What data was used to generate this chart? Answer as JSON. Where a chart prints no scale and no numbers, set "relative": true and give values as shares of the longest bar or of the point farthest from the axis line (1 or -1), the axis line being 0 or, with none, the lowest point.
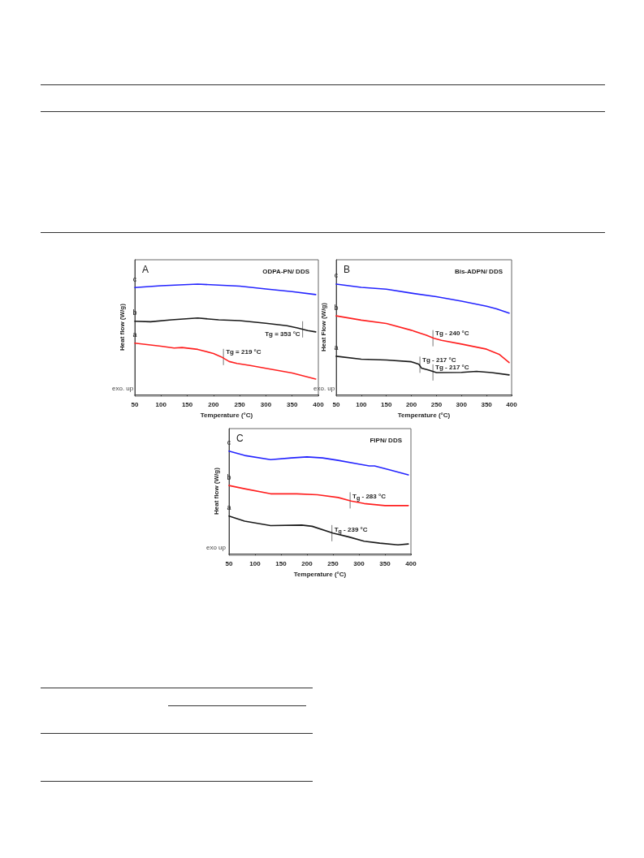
{
  "chart_data": [
    {
      "type": "line",
      "title": "A",
      "subtitle": "ODPA-PN/ DDS",
      "xlabel": "Temperature (°C)",
      "ylabel": "Heat flow (W/g)",
      "relative": true,
      "xlim": [
        50,
        400
      ],
      "xticks": [
        50,
        100,
        150,
        200,
        250,
        300,
        350,
        400
      ],
      "grid": false,
      "legend": false,
      "marker": "none",
      "line_style": "solid",
      "series": [
        {
          "name": "c",
          "color": "#2424ff",
          "x": [
            50,
            100,
            170,
            250,
            300,
            350,
            395
          ],
          "values": [
            0.968,
            0.985,
            1.0,
            0.981,
            0.956,
            0.932,
            0.905
          ]
        },
        {
          "name": "b",
          "color": "#1a1a1a",
          "x": [
            50,
            80,
            120,
            170,
            210,
            250,
            300,
            340,
            360,
            380,
            395
          ],
          "values": [
            0.664,
            0.659,
            0.676,
            0.693,
            0.676,
            0.669,
            0.645,
            0.623,
            0.603,
            0.579,
            0.567
          ]
        },
        {
          "name": "a",
          "color": "#ff1f1f",
          "x": [
            50,
            100,
            125,
            140,
            170,
            200,
            215,
            230,
            245,
            270,
            300,
            350,
            395
          ],
          "values": [
            0.465,
            0.438,
            0.421,
            0.426,
            0.409,
            0.372,
            0.341,
            0.299,
            0.282,
            0.263,
            0.238,
            0.195,
            0.141
          ]
        }
      ],
      "annotations": [
        {
          "text": "Tg = 219 °C",
          "x": 219,
          "y": 0.34
        },
        {
          "text": "Tg = 353 °C",
          "x": 370,
          "y": 0.59
        },
        "exo. up"
      ]
    },
    {
      "type": "line",
      "title": "B",
      "subtitle": "Bis-ADPN/ DDS",
      "xlabel": "Temperature (°C)",
      "ylabel": "Heat Flow (W/g)",
      "relative": true,
      "xlim": [
        50,
        400
      ],
      "xticks": [
        50,
        100,
        150,
        200,
        250,
        300,
        350,
        400
      ],
      "grid": false,
      "legend": false,
      "marker": "none",
      "line_style": "solid",
      "series": [
        {
          "name": "c",
          "color": "#2424ff",
          "x": [
            50,
            100,
            150,
            200,
            250,
            300,
            350,
            370,
            395
          ],
          "values": [
            1.0,
            0.97,
            0.954,
            0.918,
            0.886,
            0.845,
            0.799,
            0.776,
            0.737
          ]
        },
        {
          "name": "b",
          "color": "#ff1f1f",
          "x": [
            50,
            100,
            150,
            200,
            230,
            245,
            260,
            300,
            350,
            375,
            395
          ],
          "values": [
            0.712,
            0.674,
            0.644,
            0.582,
            0.537,
            0.509,
            0.491,
            0.457,
            0.411,
            0.365,
            0.29
          ]
        },
        {
          "name": "a",
          "color": "#1a1a1a",
          "x": [
            50,
            100,
            150,
            200,
            215,
            220,
            235,
            250,
            300,
            330,
            360,
            395
          ],
          "values": [
            0.347,
            0.32,
            0.313,
            0.297,
            0.274,
            0.24,
            0.221,
            0.199,
            0.201,
            0.21,
            0.199,
            0.178
          ]
        }
      ],
      "annotations": [
        {
          "text": "Tg - 240 °C",
          "x": 243,
          "y": 0.51
        },
        {
          "text": "Tg - 217 °C",
          "x": 217,
          "y": 0.27
        },
        {
          "text": "Tg - 217 °C",
          "x": 243,
          "y": 0.2
        },
        "exo. up"
      ]
    },
    {
      "type": "line",
      "title": "C",
      "subtitle": "FIPN/ DDS",
      "xlabel": "Temperature (°C)",
      "ylabel": "Heat flow (W/g)",
      "relative": true,
      "xlim": [
        50,
        400
      ],
      "xticks": [
        50,
        100,
        150,
        200,
        250,
        300,
        350,
        400
      ],
      "grid": false,
      "legend": false,
      "marker": "none",
      "line_style": "solid",
      "series": [
        {
          "name": "c",
          "color": "#2424ff",
          "x": [
            50,
            80,
            130,
            170,
            200,
            230,
            260,
            300,
            320,
            330,
            360,
            395
          ],
          "values": [
            1.0,
            0.958,
            0.917,
            0.934,
            0.944,
            0.934,
            0.91,
            0.873,
            0.856,
            0.856,
            0.817,
            0.768
          ]
        },
        {
          "name": "b",
          "color": "#ff1f1f",
          "x": [
            50,
            80,
            130,
            180,
            220,
            260,
            285,
            310,
            350,
            395
          ],
          "values": [
            0.665,
            0.633,
            0.584,
            0.584,
            0.575,
            0.548,
            0.513,
            0.489,
            0.469,
            0.469
          ]
        },
        {
          "name": "a",
          "color": "#1a1a1a",
          "x": [
            50,
            80,
            130,
            190,
            210,
            250,
            280,
            310,
            340,
            375,
            395
          ],
          "values": [
            0.367,
            0.318,
            0.274,
            0.279,
            0.267,
            0.2,
            0.164,
            0.122,
            0.103,
            0.086,
            0.095
          ]
        }
      ],
      "annotations": [
        {
          "text": "T$_{g}$ - 283 °C",
          "x": 283,
          "y": 0.52
        },
        {
          "text": "T$_{g}$ - 239 °C",
          "x": 248,
          "y": 0.2
        },
        "exo up"
      ]
    }
  ]
}
